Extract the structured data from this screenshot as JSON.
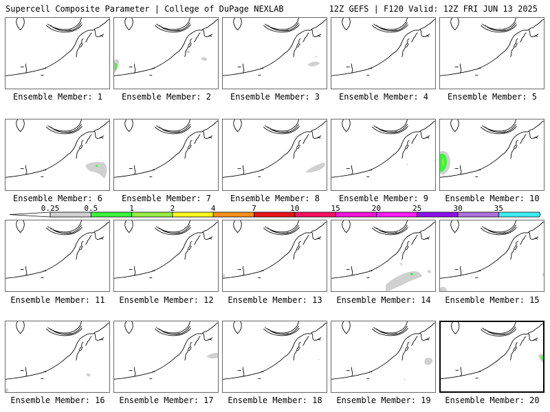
{
  "header": {
    "left": "Supercell Composite Parameter | College of DuPage NEXLAB",
    "right": "12Z GEFS | F120 Valid: 12Z FRI JUN 13 2025"
  },
  "colorbar": {
    "ticks": [
      "0.25",
      "0.5",
      "1",
      "2",
      "4",
      "7",
      "10",
      "15",
      "20",
      "25",
      "30",
      "35"
    ],
    "colors": [
      "#d0d0d0",
      "#3cf43c",
      "#98ec44",
      "#f8f820",
      "#f8901c",
      "#e8141c",
      "#f81060",
      "#f014d8",
      "#fc1cfc",
      "#8c10ec",
      "#ac70dc",
      "#40ecf0"
    ]
  },
  "members": [
    {
      "caption": "Ensemble Member: 1"
    },
    {
      "caption": "Ensemble Member: 2"
    },
    {
      "caption": "Ensemble Member: 3"
    },
    {
      "caption": "Ensemble Member: 4"
    },
    {
      "caption": "Ensemble Member: 5"
    },
    {
      "caption": "Ensemble Member: 6"
    },
    {
      "caption": "Ensemble Member: 7"
    },
    {
      "caption": "Ensemble Member: 8"
    },
    {
      "caption": "Ensemble Member: 9"
    },
    {
      "caption": "Ensemble Member: 10"
    },
    {
      "caption": "Ensemble Member: 11"
    },
    {
      "caption": "Ensemble Member: 12"
    },
    {
      "caption": "Ensemble Member: 13"
    },
    {
      "caption": "Ensemble Member: 14"
    },
    {
      "caption": "Ensemble Member: 15"
    },
    {
      "caption": "Ensemble Member: 16"
    },
    {
      "caption": "Ensemble Member: 17"
    },
    {
      "caption": "Ensemble Member: 18"
    },
    {
      "caption": "Ensemble Member: 19"
    },
    {
      "caption": "Ensemble Member: 20"
    }
  ]
}
